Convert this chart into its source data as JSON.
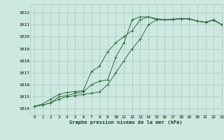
{
  "title": "Graphe pression niveau de la mer (hPa)",
  "xlim": [
    -0.5,
    23
  ],
  "ylim": [
    1013.5,
    1022.7
  ],
  "yticks": [
    1014,
    1015,
    1016,
    1017,
    1018,
    1019,
    1020,
    1021,
    1022
  ],
  "xticks": [
    0,
    1,
    2,
    3,
    4,
    5,
    6,
    7,
    8,
    9,
    10,
    11,
    12,
    13,
    14,
    15,
    16,
    17,
    18,
    19,
    20,
    21,
    22,
    23
  ],
  "bg_color": "#cde8e0",
  "grid_color": "#a8c8c0",
  "line_color": "#2d6e3e",
  "series": [
    [
      1014.2,
      1014.3,
      1014.5,
      1014.8,
      1015.0,
      1015.1,
      1015.2,
      1015.3,
      1015.4,
      1016.0,
      1017.0,
      1018.0,
      1019.0,
      1019.8,
      1021.0,
      1021.4,
      1021.4,
      1021.4,
      1021.5,
      1021.5,
      1021.3,
      1021.2,
      1021.4,
      1021.0
    ],
    [
      1014.2,
      1014.3,
      1014.5,
      1015.0,
      1015.1,
      1015.3,
      1015.4,
      1016.0,
      1016.3,
      1016.4,
      1018.3,
      1019.5,
      1021.4,
      1021.65,
      1021.65,
      1021.4,
      1021.4,
      1021.45,
      1021.5,
      1021.5,
      1021.3,
      1021.2,
      1021.4,
      1021.0
    ],
    [
      1014.2,
      1014.4,
      1014.8,
      1015.2,
      1015.35,
      1015.45,
      1015.5,
      1017.1,
      1017.55,
      1018.75,
      1019.5,
      1020.0,
      1020.5,
      1021.4,
      1021.65,
      1021.5,
      1021.4,
      1021.45,
      1021.5,
      1021.45,
      1021.3,
      1021.2,
      1021.35,
      1021.0
    ]
  ]
}
